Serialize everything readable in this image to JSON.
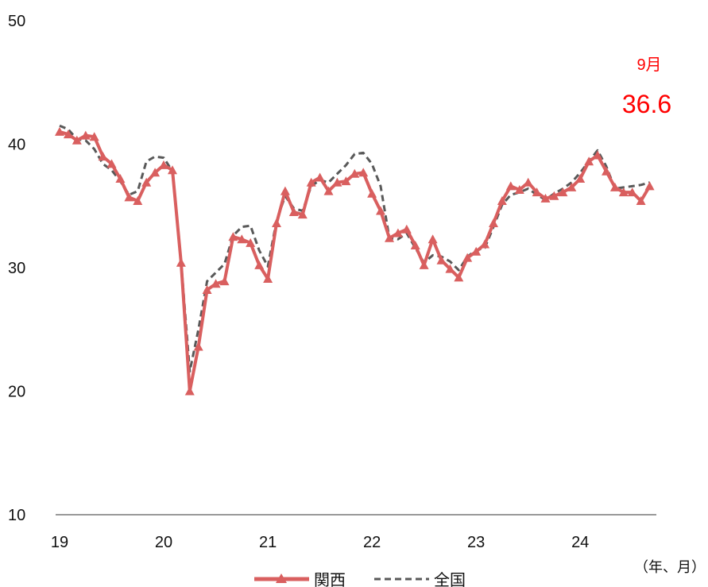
{
  "chart_data": {
    "type": "line",
    "title": "",
    "xlabel": "（年、月）",
    "ylabel": "",
    "ylim": [
      10,
      50
    ],
    "yticks": [
      10,
      20,
      30,
      40,
      50
    ],
    "xticks": [
      {
        "month_index": 0,
        "label": "19"
      },
      {
        "month_index": 12,
        "label": "20"
      },
      {
        "month_index": 24,
        "label": "21"
      },
      {
        "month_index": 36,
        "label": "22"
      },
      {
        "month_index": 48,
        "label": "23"
      },
      {
        "month_index": 60,
        "label": "24"
      }
    ],
    "grid": false,
    "legend_position": "bottom-center",
    "series": [
      {
        "name": "関西",
        "color": "#d95f5f",
        "style": "solid",
        "marker": "triangle",
        "values": [
          41.0,
          40.8,
          40.3,
          40.7,
          40.6,
          39.0,
          38.4,
          37.2,
          35.7,
          35.4,
          36.9,
          37.7,
          38.3,
          37.9,
          30.4,
          20.0,
          23.6,
          28.2,
          28.7,
          28.9,
          32.5,
          32.3,
          32.0,
          30.2,
          29.1,
          33.6,
          36.2,
          34.5,
          34.3,
          36.9,
          37.3,
          36.2,
          36.9,
          37.0,
          37.6,
          37.7,
          36.0,
          34.6,
          32.4,
          32.8,
          33.1,
          31.8,
          30.2,
          32.3,
          30.6,
          29.9,
          29.2,
          30.8,
          31.3,
          31.9,
          33.6,
          35.4,
          36.6,
          36.3,
          36.9,
          36.1,
          35.6,
          35.8,
          36.1,
          36.5,
          37.2,
          38.6,
          39.1,
          37.8,
          36.5,
          36.1,
          36.1,
          35.4,
          36.6
        ]
      },
      {
        "name": "全国",
        "color": "#595959",
        "style": "dashed",
        "marker": "none",
        "values": [
          41.5,
          41.2,
          40.4,
          40.3,
          39.6,
          38.4,
          37.9,
          37.0,
          35.9,
          36.2,
          38.6,
          39.0,
          38.9,
          37.8,
          30.5,
          21.6,
          25.0,
          28.9,
          29.6,
          30.3,
          32.6,
          33.3,
          33.4,
          31.4,
          30.1,
          33.8,
          35.8,
          34.8,
          34.6,
          36.6,
          37.1,
          36.9,
          37.6,
          38.3,
          39.2,
          39.3,
          38.4,
          36.6,
          32.4,
          32.3,
          32.8,
          31.6,
          30.4,
          31.0,
          30.9,
          30.5,
          29.8,
          30.9,
          31.4,
          31.6,
          33.3,
          35.1,
          35.9,
          36.1,
          36.4,
          35.9,
          35.5,
          36.0,
          36.4,
          36.9,
          37.7,
          38.6,
          39.5,
          38.2,
          36.4,
          36.5,
          36.6,
          36.7,
          36.9
        ]
      }
    ],
    "annotations": [
      {
        "month": "9月",
        "value": "36.6",
        "color": "#ff0000"
      }
    ]
  }
}
